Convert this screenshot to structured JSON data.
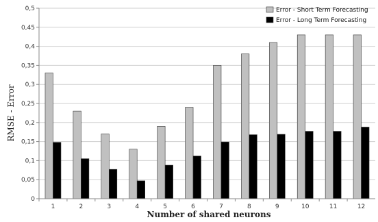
{
  "chart_data": {
    "type": "bar",
    "categories": [
      "1",
      "2",
      "3",
      "4",
      "5",
      "6",
      "7",
      "8",
      "9",
      "10",
      "11",
      "12"
    ],
    "series": [
      {
        "name": "Error - Short Term Forecasting",
        "color": "#c0c0c0",
        "values": [
          0.33,
          0.23,
          0.17,
          0.13,
          0.19,
          0.24,
          0.35,
          0.38,
          0.41,
          0.43,
          0.43,
          0.43
        ]
      },
      {
        "name": "Error - Long Term Forecasting",
        "color": "#000000",
        "values": [
          0.148,
          0.105,
          0.077,
          0.047,
          0.088,
          0.112,
          0.149,
          0.168,
          0.169,
          0.177,
          0.177,
          0.188
        ]
      }
    ],
    "yticks": [
      "0",
      "0,05",
      "0,1",
      "0,15",
      "0,2",
      "0,25",
      "0,3",
      "0,35",
      "0,4",
      "0,45",
      "0,5"
    ],
    "ylim": [
      0,
      0.5
    ],
    "xlabel": "Number of shared neurons",
    "ylabel": "RMSE - Error",
    "grid": true,
    "legend_position": "top-right"
  }
}
